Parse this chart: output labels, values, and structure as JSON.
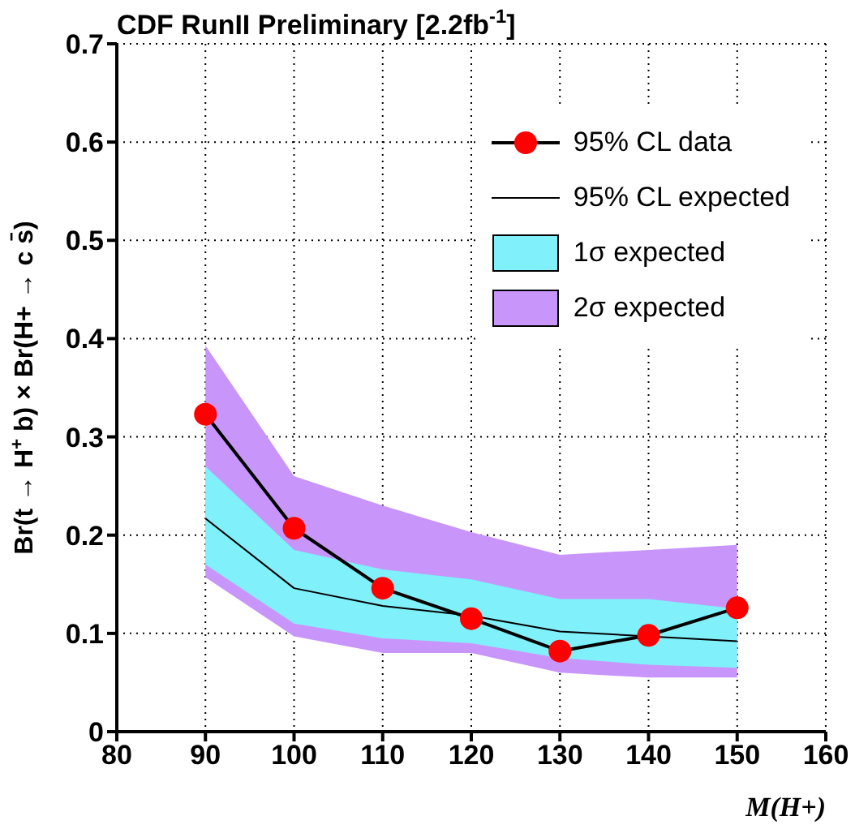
{
  "chart_data": {
    "type": "line",
    "title": "CDF RunII Preliminary [2.2fb$^{-1}$]",
    "xlabel": "M(H+)",
    "ylabel": "Br(t → H$^{+}$ b) × Br(H+ → c s̄)",
    "x": [
      90,
      100,
      110,
      120,
      130,
      140,
      150
    ],
    "series": [
      {
        "name": "95% CL data",
        "color": "#ff0000",
        "marker": "circle",
        "values": [
          0.323,
          0.207,
          0.146,
          0.115,
          0.082,
          0.098,
          0.126
        ]
      },
      {
        "name": "95% CL expected",
        "color": "#000000",
        "marker": "none",
        "values": [
          0.217,
          0.146,
          0.128,
          0.118,
          0.102,
          0.097,
          0.092
        ]
      },
      {
        "name": "1σ expected",
        "type": "area",
        "color": "#80f0fa",
        "values": [
          null,
          null,
          null,
          null,
          null,
          null,
          null
        ],
        "lower": [
          0.17,
          0.11,
          0.095,
          0.09,
          0.075,
          0.068,
          0.065
        ],
        "upper": [
          0.27,
          0.185,
          0.165,
          0.155,
          0.135,
          0.135,
          0.125
        ]
      },
      {
        "name": "2σ expected",
        "type": "area",
        "color": "#c896fa",
        "values": [
          null,
          null,
          null,
          null,
          null,
          null,
          null
        ],
        "lower": [
          0.157,
          0.097,
          0.08,
          0.08,
          0.06,
          0.055,
          0.055
        ],
        "upper": [
          0.393,
          0.26,
          0.23,
          0.203,
          0.18,
          0.185,
          0.19
        ]
      }
    ],
    "xlim": [
      80,
      160
    ],
    "xticks": [
      80,
      90,
      100,
      110,
      120,
      130,
      140,
      150,
      160
    ],
    "ylim": [
      0,
      0.7
    ],
    "yticks": [
      0,
      0.1,
      0.2,
      0.3,
      0.4,
      0.5,
      0.6,
      0.7
    ],
    "grid": true,
    "legend": "top right"
  }
}
